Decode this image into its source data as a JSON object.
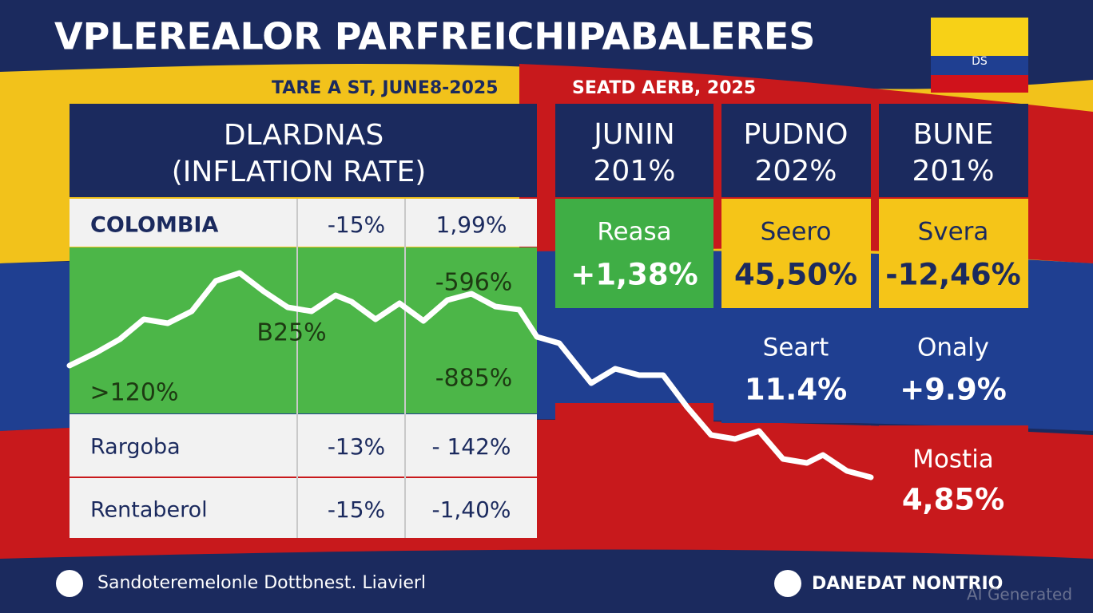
{
  "header": {
    "title": "VPLEREALOR PARFREICHIPABALERES",
    "subtitle_left": "TARE A ST, JUNE8-2025",
    "subtitle_right": "SEATD AERB, 2025",
    "flag_text": "DS"
  },
  "table": {
    "heading": [
      "DLARDNAS",
      "(INFLATION RATE)"
    ],
    "rows": [
      [
        "COLOMBIA",
        "-15%",
        "1,99%"
      ],
      [
        "Rargoba",
        "-13%",
        "- 142%"
      ],
      [
        "Rentaberol",
        "-15%",
        "-1,40%"
      ]
    ],
    "chart_labels": [
      "-596%",
      "B25%",
      "-885%",
      ">120%"
    ]
  },
  "columns": [
    {
      "header": [
        "JUNIN",
        "201%"
      ],
      "cells": [
        {
          "label": "Reasa",
          "value": "+1,38%"
        }
      ]
    },
    {
      "header": [
        "PUDNO",
        "202%"
      ],
      "cells": [
        {
          "label": "Seero",
          "value": "45,50%"
        },
        {
          "label": "Seart",
          "value": "11.4%"
        }
      ]
    },
    {
      "header": [
        "BUNE",
        "201%"
      ],
      "cells": [
        {
          "label": "Svera",
          "value": "-12,46%"
        },
        {
          "label": "Onaly",
          "value": "+9.9%"
        },
        {
          "label": "Mostia",
          "value": "4,85%"
        }
      ]
    }
  ],
  "footer": {
    "left": "Sandoteremelonle Dottbnest. Liavierl",
    "right": "DANEDAT NONTRIO",
    "watermark": "AI Generated"
  }
}
